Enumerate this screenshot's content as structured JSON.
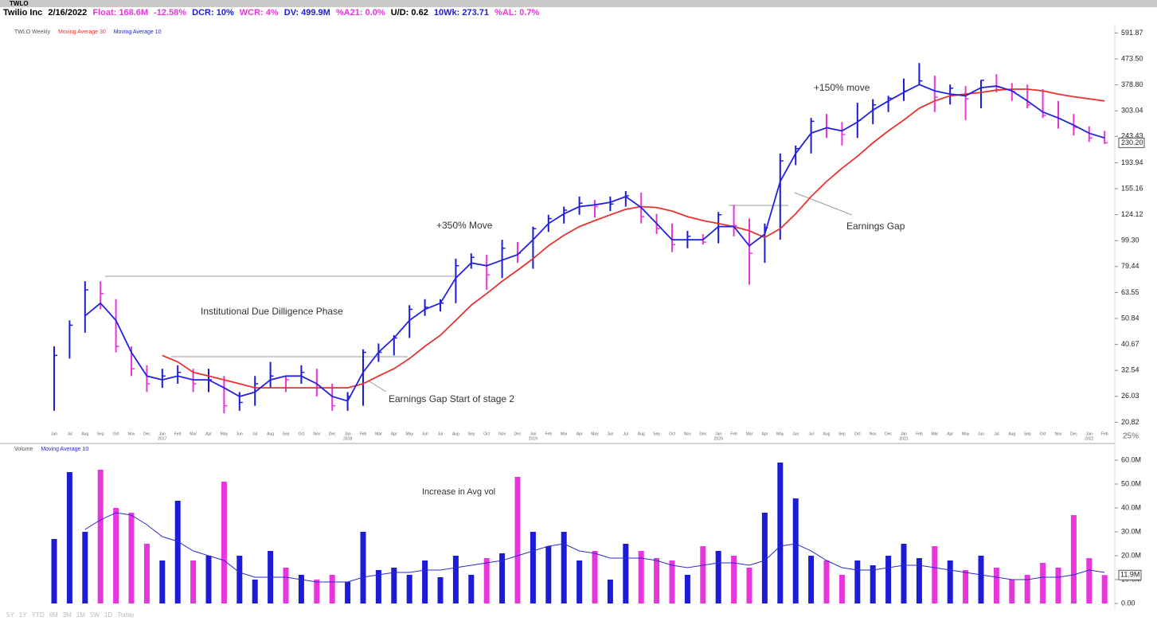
{
  "toolbar": {
    "ticker": "TWLO",
    "zoom": "25%"
  },
  "header": {
    "name": "Twilio Inc",
    "date": "2/16/2022",
    "float": "Float: 168.6M",
    "change": "-12.58%",
    "dcr": "DCR: 10%",
    "wcr": "WCR: 4%",
    "dv": "DV: 499.9M",
    "a21": "%A21: 0.0%",
    "ud": "U/D: 0.62",
    "wk10": "10Wk: 273.71",
    "al": "%AL: 0.7%"
  },
  "chart_data": [
    {
      "type": "ohlc",
      "title": "TWLO Weekly",
      "log_scale": true,
      "up_color": "#1c1cd6",
      "down_color": "#e636dc",
      "categories": [
        "Jun",
        "Jul",
        "Aug",
        "Sep",
        "Oct",
        "Nov",
        "Dec",
        "Jan",
        "Feb",
        "Mar",
        "Apr",
        "May",
        "Jun",
        "Jul",
        "Aug",
        "Sep",
        "Oct",
        "Nov",
        "Dec",
        "Jan",
        "Feb",
        "Mar",
        "Apr",
        "May",
        "Jun",
        "Jul",
        "Aug",
        "Sep",
        "Oct",
        "Nov",
        "Dec",
        "Jan",
        "Feb",
        "Mar",
        "Apr",
        "May",
        "Jun",
        "Jul",
        "Aug",
        "Sep",
        "Oct",
        "Nov",
        "Dec",
        "Jan",
        "Feb",
        "Mar",
        "Apr",
        "May",
        "Jun",
        "Jul",
        "Aug",
        "Sep",
        "Oct",
        "Nov",
        "Dec",
        "Jan",
        "Feb",
        "Mar",
        "Apr",
        "May",
        "Jun",
        "Jul",
        "Aug",
        "Sep",
        "Oct",
        "Nov",
        "Dec",
        "Jan",
        "Feb"
      ],
      "x_year_labels": [
        "2017",
        "2018",
        "2019",
        "2020",
        "2021",
        "2022"
      ],
      "high": [
        40,
        50,
        70,
        70,
        60,
        40,
        34,
        33,
        34,
        33,
        33,
        31,
        27,
        31,
        35,
        31,
        34,
        33,
        29,
        27,
        39,
        41,
        44,
        57,
        60,
        60,
        85,
        89,
        88,
        100,
        98,
        112,
        124,
        133,
        145,
        141,
        145,
        152,
        150,
        125,
        115,
        108,
        105,
        127,
        135,
        120,
        115,
        210,
        225,
        285,
        295,
        275,
        325,
        335,
        345,
        400,
        457,
        410,
        380,
        375,
        395,
        415,
        385,
        380,
        365,
        330,
        295,
        265,
        255
      ],
      "low": [
        23,
        36,
        45,
        55,
        38,
        31,
        27,
        28,
        29,
        27,
        27,
        22.5,
        23,
        24,
        28,
        27,
        29,
        26,
        23,
        23,
        24,
        35,
        37,
        43,
        52,
        54,
        58,
        78,
        65,
        72,
        82,
        78,
        107,
        115,
        124,
        121,
        128,
        133,
        115,
        105,
        90,
        93,
        96,
        97,
        103,
        68,
        82,
        100,
        190,
        210,
        240,
        225,
        240,
        270,
        300,
        330,
        380,
        300,
        320,
        280,
        310,
        355,
        330,
        310,
        285,
        260,
        245,
        232,
        228
      ],
      "close": [
        37,
        48,
        65,
        63,
        40,
        33,
        29,
        31,
        32,
        29,
        30,
        24,
        24.7,
        29,
        31,
        30,
        32,
        28,
        24,
        26,
        38,
        38,
        43,
        55,
        56,
        58,
        80,
        86,
        74,
        93,
        89,
        110,
        120,
        129,
        137,
        133,
        136,
        146,
        122,
        110,
        96,
        103,
        98,
        124,
        113,
        89,
        111,
        197,
        219,
        277,
        262,
        247,
        279,
        319,
        338,
        359,
        392,
        341,
        368,
        336,
        394,
        373,
        358,
        319,
        291,
        283,
        263,
        240,
        230.2
      ],
      "series": [
        {
          "name": "Moving Average 30",
          "color": "#e8322e",
          "values": [
            null,
            null,
            null,
            null,
            null,
            null,
            null,
            37,
            35,
            32,
            31,
            30,
            29,
            28,
            28,
            28,
            28,
            28,
            28,
            28,
            29,
            31,
            33,
            36,
            40,
            44,
            50,
            57,
            63,
            70,
            77,
            85,
            95,
            104,
            112,
            118,
            124,
            130,
            133,
            132,
            128,
            122,
            118,
            115,
            112,
            108,
            102,
            110,
            125,
            145,
            165,
            185,
            205,
            230,
            255,
            280,
            310,
            330,
            345,
            350,
            355,
            362,
            365,
            365,
            360,
            350,
            342,
            336,
            330
          ]
        },
        {
          "name": "Moving Average 10",
          "color": "#2222e0",
          "values": [
            null,
            null,
            52,
            58,
            50,
            38,
            31,
            30,
            31,
            30,
            30,
            28,
            26,
            27,
            30,
            31,
            31,
            29,
            26,
            25,
            32,
            38,
            43,
            50,
            55,
            58,
            72,
            82,
            80,
            84,
            88,
            100,
            115,
            125,
            133,
            135,
            138,
            145,
            132,
            115,
            100,
            100,
            100,
            112,
            112,
            95,
            105,
            165,
            210,
            250,
            262,
            255,
            275,
            305,
            330,
            355,
            380,
            360,
            350,
            345,
            370,
            375,
            360,
            330,
            300,
            285,
            268,
            250,
            240
          ]
        }
      ],
      "ylim": [
        19.5,
        640
      ],
      "yticks": [
        591.87,
        {
          "value": 473.5,
          "label": "473.50"
        },
        {
          "value": 378.8,
          "label": "378.80"
        },
        303.04,
        243.43,
        193.94,
        155.16,
        124.12,
        {
          "value": 99.3,
          "label": "99.30"
        },
        79.44,
        63.55,
        50.84,
        40.67,
        32.54,
        26.03,
        20.82
      ],
      "last_label": {
        "value": 230.2,
        "label": "230.20"
      },
      "annotations": [
        "Institutional Due Dilligence Phase",
        "+350% Move",
        "Earnings Gap Start of stage 2",
        "+150% move",
        "Earnings Gap"
      ]
    },
    {
      "type": "bar",
      "title": "Volume",
      "values": [
        27,
        55,
        30,
        56,
        40,
        38,
        25,
        18,
        43,
        18,
        20,
        51,
        20,
        10,
        22,
        15,
        12,
        10,
        12,
        9,
        30,
        14,
        15,
        12,
        18,
        11,
        20,
        12,
        19,
        21,
        53,
        30,
        24,
        30,
        18,
        22,
        10,
        25,
        22,
        19,
        18,
        12,
        24,
        22,
        20,
        15,
        38,
        59,
        44,
        20,
        18,
        12,
        18,
        16,
        20,
        25,
        19,
        24,
        18,
        14,
        20,
        15,
        10,
        12,
        17,
        15,
        37,
        19,
        11.9
      ],
      "series": [
        {
          "name": "Moving Average 10",
          "color": "#2a2ad0",
          "values": [
            null,
            null,
            31,
            35,
            38,
            37,
            33,
            28,
            26,
            22,
            20,
            18,
            13,
            11,
            11,
            11,
            10,
            9,
            9,
            9,
            11,
            12,
            13,
            13,
            14,
            14,
            15,
            16,
            17,
            18,
            20,
            22,
            24,
            25,
            22,
            21,
            19,
            19,
            19,
            18,
            16,
            15,
            16,
            17,
            17,
            16,
            18,
            24,
            25,
            22,
            18,
            15,
            14,
            14,
            15,
            16,
            16,
            15,
            14,
            13,
            12,
            11,
            10,
            10,
            11,
            11,
            12,
            14,
            13
          ]
        }
      ],
      "ylim": [
        0,
        62
      ],
      "yticks": [
        {
          "value": 0,
          "label": "0.00"
        },
        {
          "value": 10,
          "label": "10.0M"
        },
        {
          "value": 20,
          "label": "20.0M"
        },
        {
          "value": 30,
          "label": "30.0M"
        },
        {
          "value": 40,
          "label": "40.0M"
        },
        {
          "value": 50,
          "label": "50.0M"
        },
        {
          "value": 60,
          "label": "60.0M"
        }
      ],
      "last_label": {
        "value": 11.9,
        "label": "11.9M"
      },
      "annotations": [
        "Increase in Avg vol"
      ]
    }
  ],
  "range_buttons": [
    "5Y",
    "1Y",
    "YTD",
    "6M",
    "3M",
    "1M",
    "5W",
    "1D",
    "Today"
  ]
}
